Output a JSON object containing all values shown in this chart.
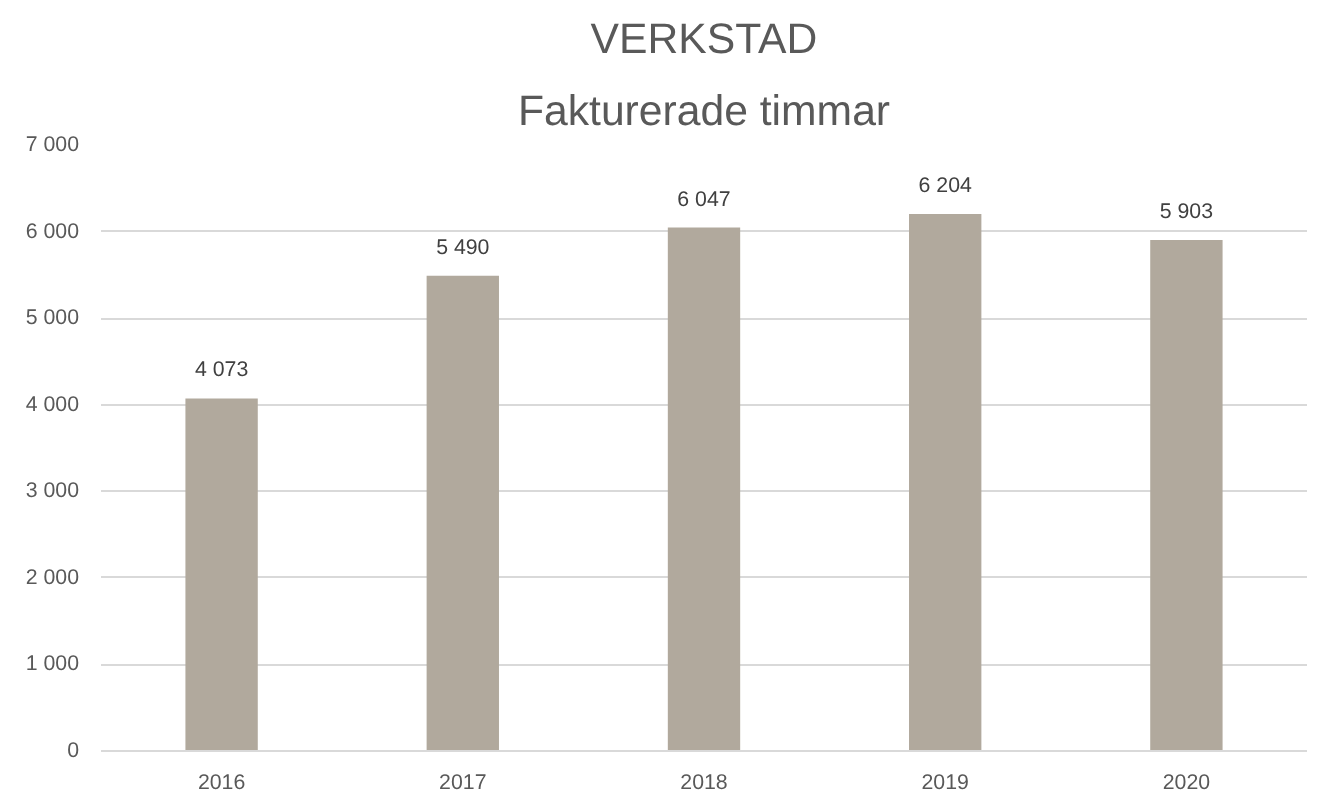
{
  "chart_data": {
    "type": "bar",
    "title": "VERKSTAD",
    "subtitle": "Fakturerade timmar",
    "categories": [
      "2016",
      "2017",
      "2018",
      "2019",
      "2020"
    ],
    "values": [
      4073,
      5490,
      6047,
      6204,
      5903
    ],
    "value_labels": [
      "4 073",
      "5 490",
      "6 047",
      "6 204",
      "5 903"
    ],
    "color": "#b1a99d",
    "ylim": [
      0,
      7000
    ],
    "yticks": [
      {
        "value": 0,
        "label": "0"
      },
      {
        "value": 1000,
        "label": "1 000"
      },
      {
        "value": 2000,
        "label": "2 000"
      },
      {
        "value": 3000,
        "label": "3 000"
      },
      {
        "value": 4000,
        "label": "4 000"
      },
      {
        "value": 5000,
        "label": "5 000"
      },
      {
        "value": 6000,
        "label": "6 000"
      },
      {
        "value": 7000,
        "label": "7 000"
      }
    ],
    "grid": "y"
  }
}
